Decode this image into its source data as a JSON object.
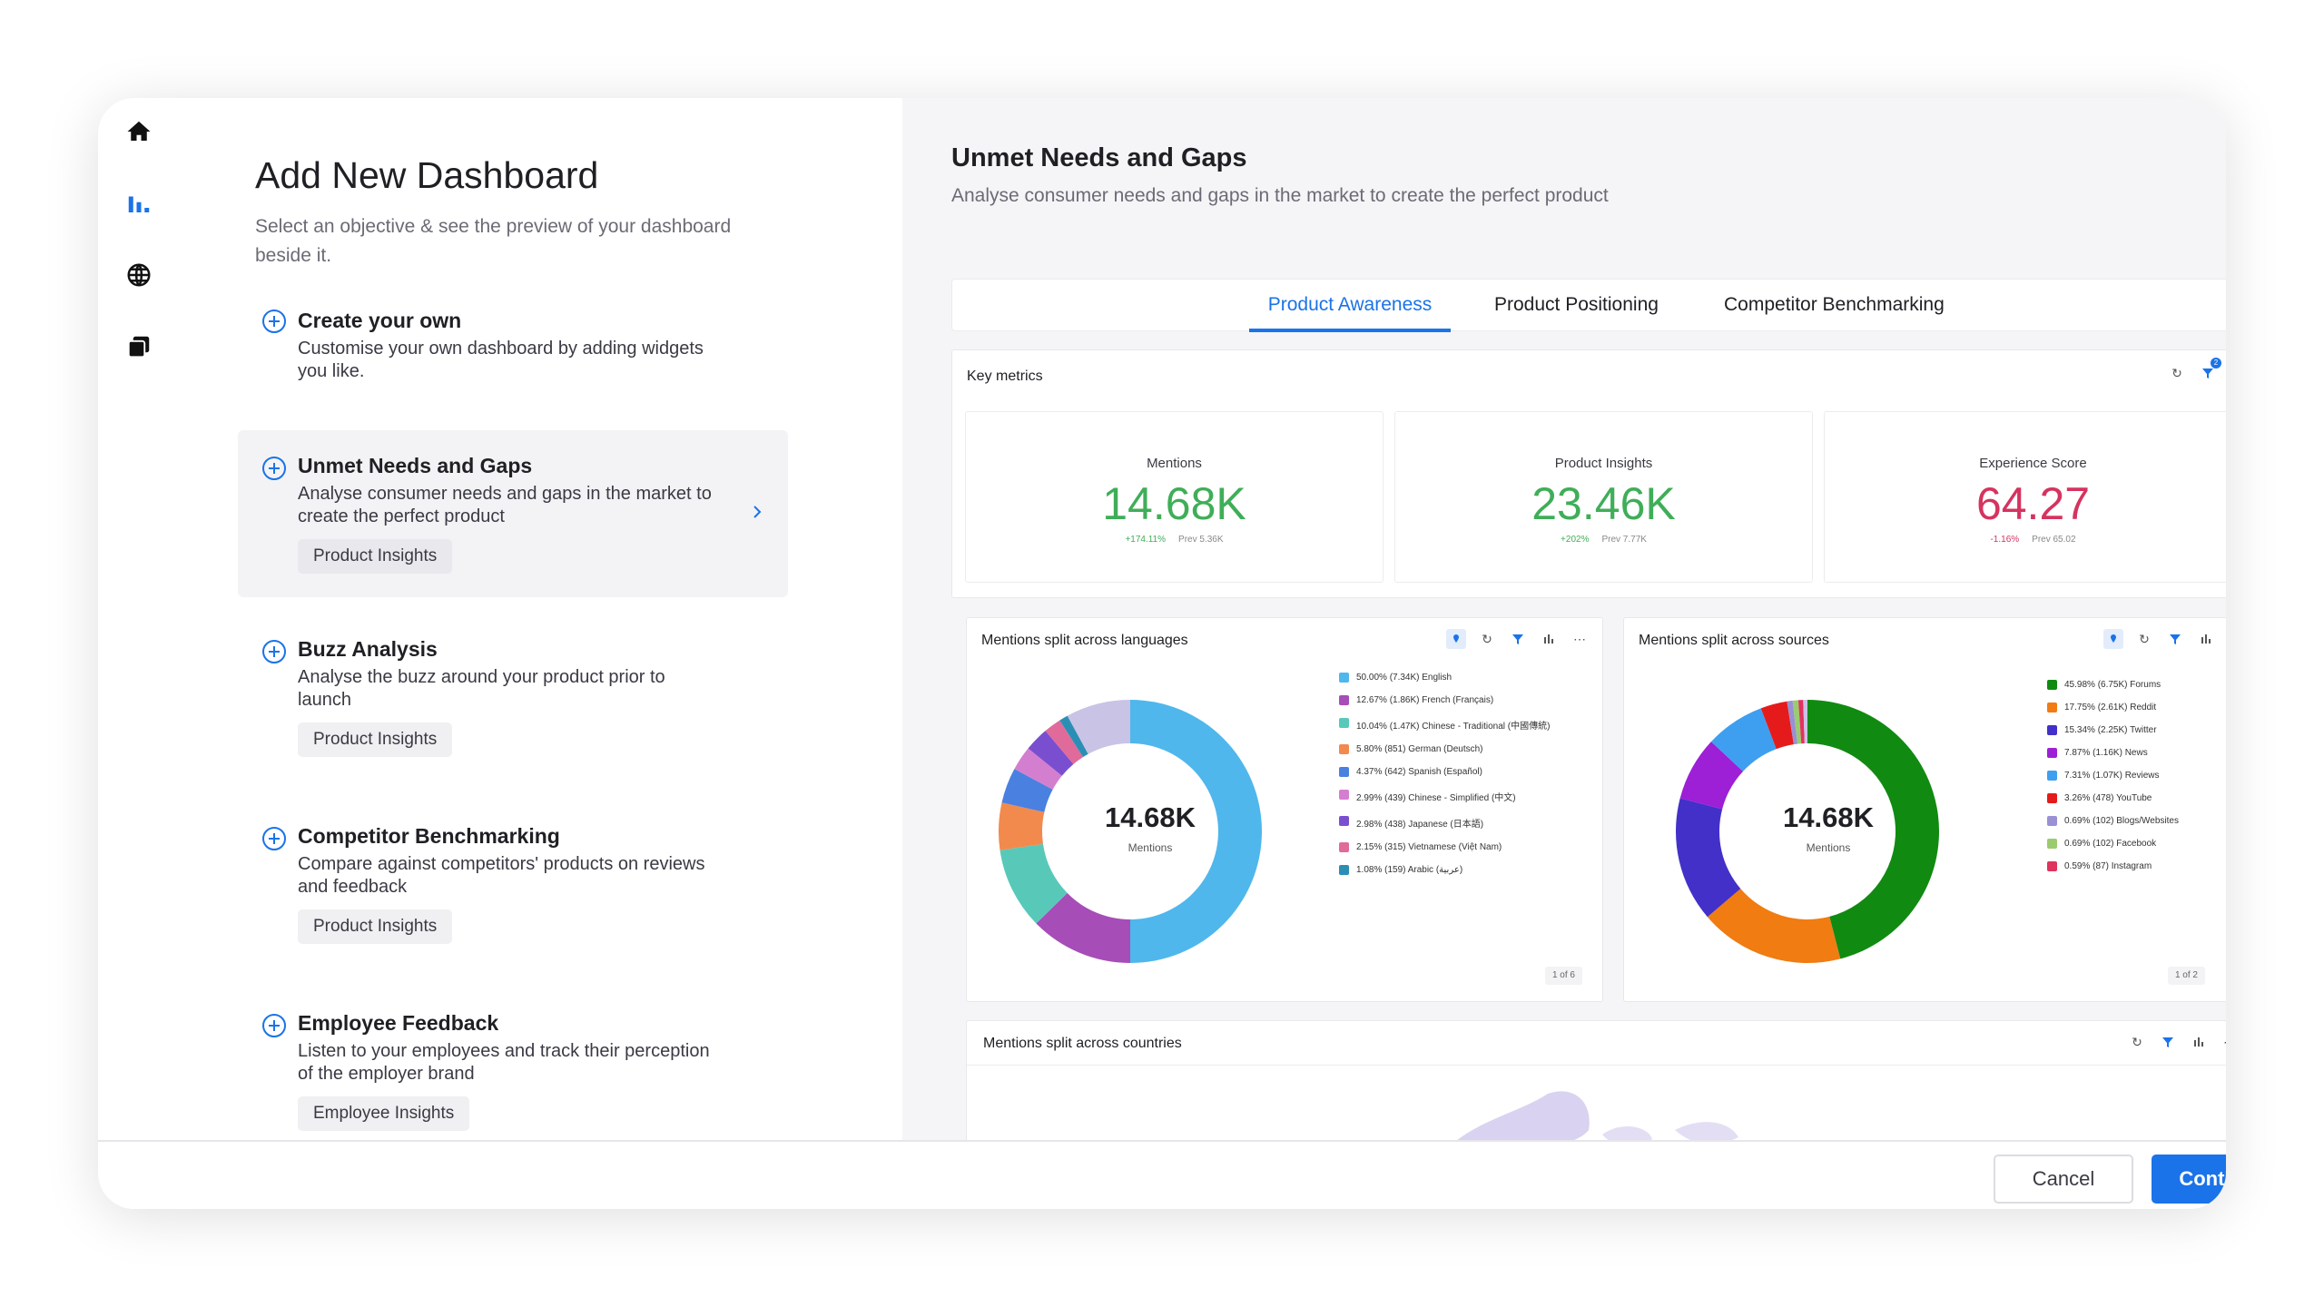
{
  "left": {
    "title": "Add New Dashboard",
    "subtitle": "Select an objective & see the preview of your dashboard beside it.",
    "objectives": [
      {
        "title": "Create your own",
        "desc": "Customise your own dashboard by adding widgets you like.",
        "tag": ""
      },
      {
        "title": "Unmet Needs and Gaps",
        "desc": "Analyse consumer needs and gaps in the market to create the perfect product",
        "tag": "Product Insights"
      },
      {
        "title": "Buzz Analysis",
        "desc": "Analyse the buzz around your product prior to launch",
        "tag": "Product Insights"
      },
      {
        "title": "Competitor Benchmarking",
        "desc": "Compare against competitors' products on reviews and feedback",
        "tag": "Product Insights"
      },
      {
        "title": "Employee Feedback",
        "desc": "Listen to your employees and track their perception of the employer brand",
        "tag": "Employee Insights"
      }
    ]
  },
  "right": {
    "title": "Unmet Needs and Gaps",
    "subtitle": "Analyse consumer needs and gaps in the market to create the perfect product",
    "tabs": [
      "Product Awareness",
      "Product Positioning",
      "Competitor Benchmarking"
    ],
    "key_metrics": {
      "title": "Key metrics",
      "filter_count": "2",
      "metrics": [
        {
          "label": "Mentions",
          "value": "14.68K",
          "change": "+174.11%",
          "prev": "Prev 5.36K",
          "color": "#3fae58"
        },
        {
          "label": "Product Insights",
          "value": "23.46K",
          "change": "+202%",
          "prev": "Prev 7.77K",
          "color": "#3fae58"
        },
        {
          "label": "Experience Score",
          "value": "64.27",
          "change": "-1.16%",
          "prev": "Prev 65.02",
          "color": "#d6335f"
        }
      ]
    },
    "languages": {
      "title": "Mentions split across languages",
      "center_value": "14.68K",
      "center_label": "Mentions",
      "pager": "1 of 6",
      "legend": [
        "50.00% (7.34K) English",
        "12.67% (1.86K) French (Français)",
        "10.04% (1.47K) Chinese - Traditional (中國傳統)",
        "5.80% (851) German (Deutsch)",
        "4.37% (642) Spanish (Español)",
        "2.99% (439) Chinese - Simplified (中文)",
        "2.98% (438) Japanese (日本語)",
        "2.15% (315) Vietnamese (Việt Nam)",
        "1.08% (159) Arabic (عربية)"
      ]
    },
    "sources": {
      "title": "Mentions split across sources",
      "center_value": "14.68K",
      "center_label": "Mentions",
      "pager": "1 of 2",
      "legend": [
        "45.98% (6.75K) Forums",
        "17.75% (2.61K) Reddit",
        "15.34% (2.25K) Twitter",
        "7.87% (1.16K) News",
        "7.31% (1.07K) Reviews",
        "3.26% (478) YouTube",
        "0.69% (102) Blogs/Websites",
        "0.69% (102) Facebook",
        "0.59% (87) Instagram"
      ]
    },
    "countries": {
      "title": "Mentions split across countries"
    }
  },
  "footer": {
    "cancel": "Cancel",
    "continue": "Continue"
  },
  "colors": {
    "accent": "#1a73e8",
    "positive": "#3fae58",
    "negative": "#d6335f"
  },
  "chart_data": [
    {
      "type": "pie",
      "title": "Mentions split across languages",
      "categories": [
        "English",
        "French (Français)",
        "Chinese - Traditional (中國傳統)",
        "German (Deutsch)",
        "Spanish (Español)",
        "Chinese - Simplified (中文)",
        "Japanese (日本語)",
        "Vietnamese (Việt Nam)",
        "Arabic (عربية)"
      ],
      "values": [
        50.0,
        12.67,
        10.04,
        5.8,
        4.37,
        2.99,
        2.98,
        2.15,
        1.08
      ],
      "colors": [
        "#4fb7ec",
        "#a64db8",
        "#58c9b9",
        "#f28a4e",
        "#4a80e0",
        "#d47ed0",
        "#7a4fcf",
        "#e06a9a",
        "#2b8fb5"
      ],
      "other_share": 7.92
    },
    {
      "type": "pie",
      "title": "Mentions split across sources",
      "categories": [
        "Forums",
        "Reddit",
        "Twitter",
        "News",
        "Reviews",
        "YouTube",
        "Blogs/Websites",
        "Facebook",
        "Instagram"
      ],
      "values": [
        45.98,
        17.75,
        15.34,
        7.87,
        7.31,
        3.26,
        0.69,
        0.69,
        0.59
      ],
      "colors": [
        "#118a12",
        "#f07c12",
        "#4330c9",
        "#9d1fd6",
        "#3e9ff0",
        "#e51b1b",
        "#9a90d4",
        "#9acb6f",
        "#e0335e"
      ],
      "other_share": 0.52
    }
  ]
}
